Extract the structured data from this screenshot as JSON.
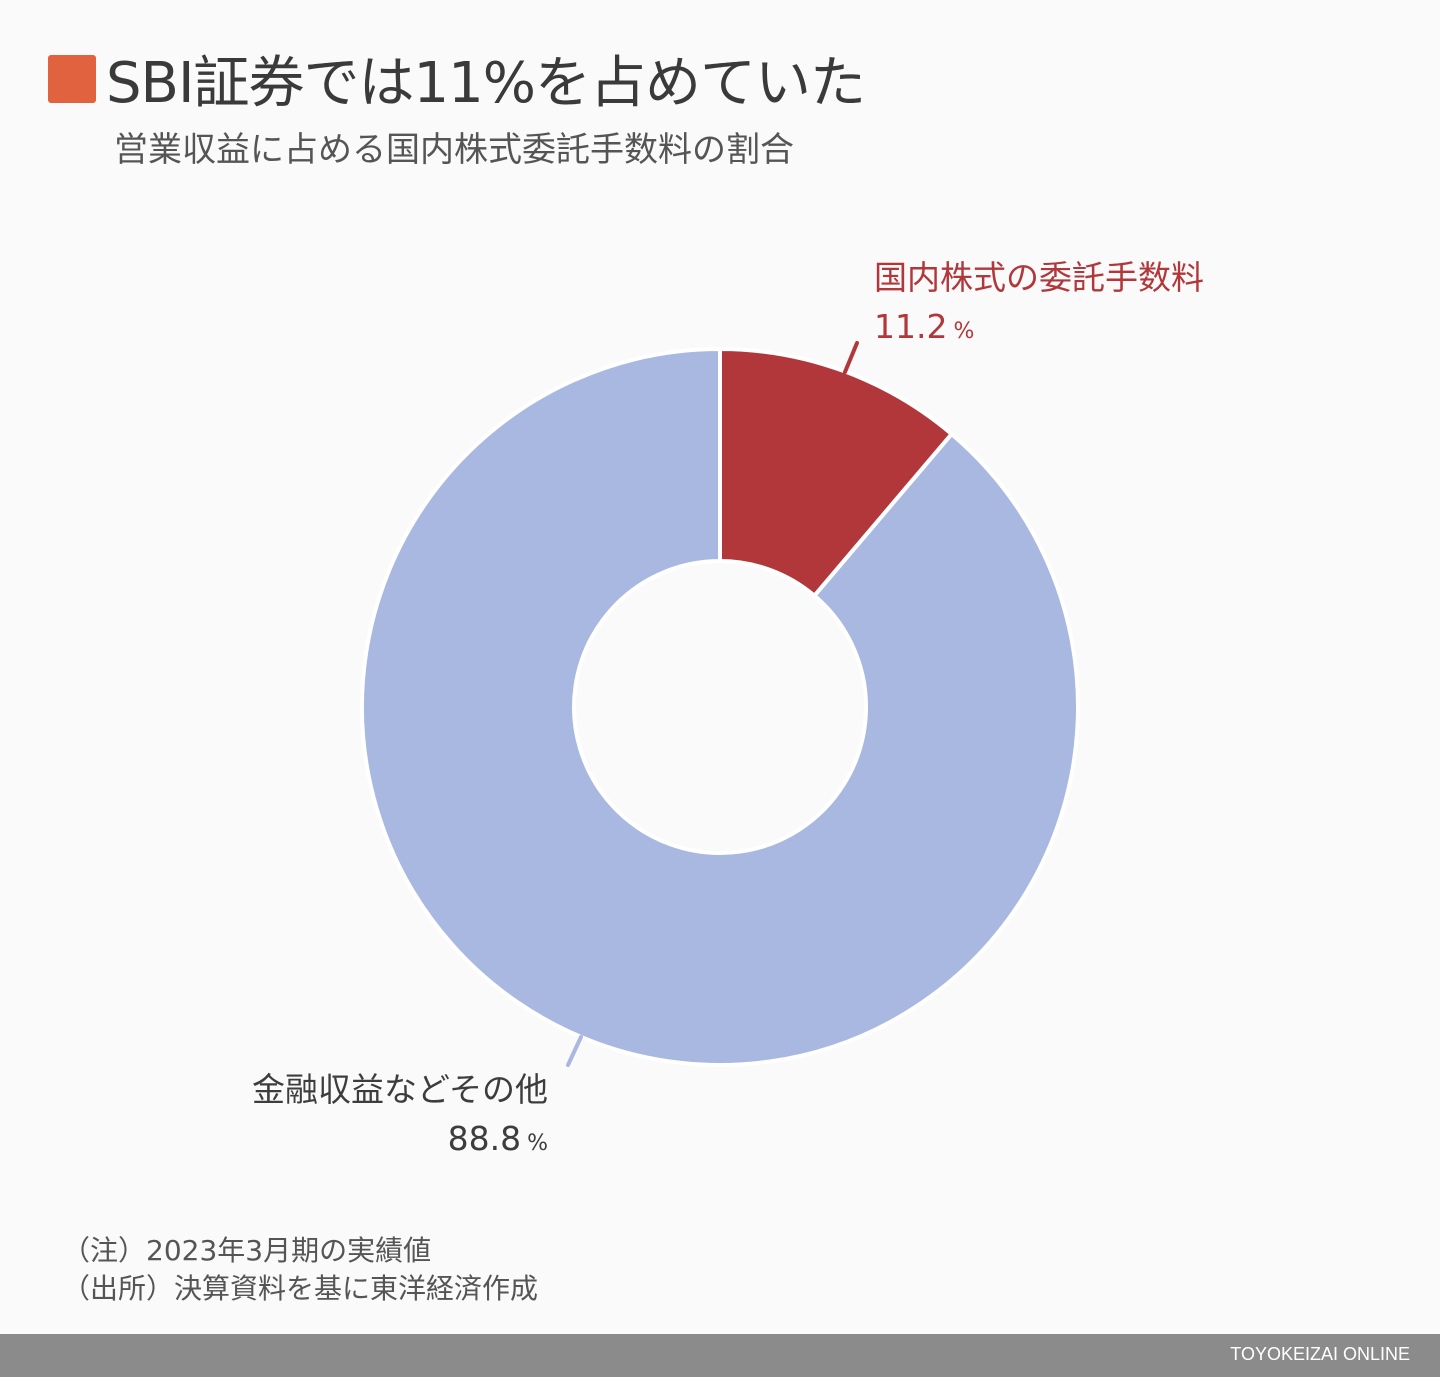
{
  "header": {
    "title": "SBI証券では11%を占めていた",
    "subtitle": "営業収益に占める国内株式委託手数料の割合",
    "accent_color": "#e0623f"
  },
  "chart_data": {
    "type": "pie",
    "variant": "donut",
    "title": "SBI証券では11%を占めていた",
    "subtitle": "営業収益に占める国内株式委託手数料の割合",
    "categories": [
      "国内株式の委託手数料",
      "金融収益などその他"
    ],
    "values": [
      11.2,
      88.8
    ],
    "unit": "%",
    "colors": [
      "#b2373a",
      "#a9b8e0"
    ],
    "start_angle": "12 o'clock, clockwise",
    "legend": "none (direct labels)"
  },
  "labels": {
    "slice1": {
      "name": "国内株式の委託手数料",
      "value": "11.2",
      "unit": "%"
    },
    "slice2": {
      "name": "金融収益などその他",
      "value": "88.8",
      "unit": "%"
    }
  },
  "notes": {
    "note": "（注）2023年3月期の実績値",
    "source": "（出所）決算資料を基に東洋経済作成"
  },
  "footer": {
    "brand": "TOYOKEIZAI ONLINE"
  }
}
